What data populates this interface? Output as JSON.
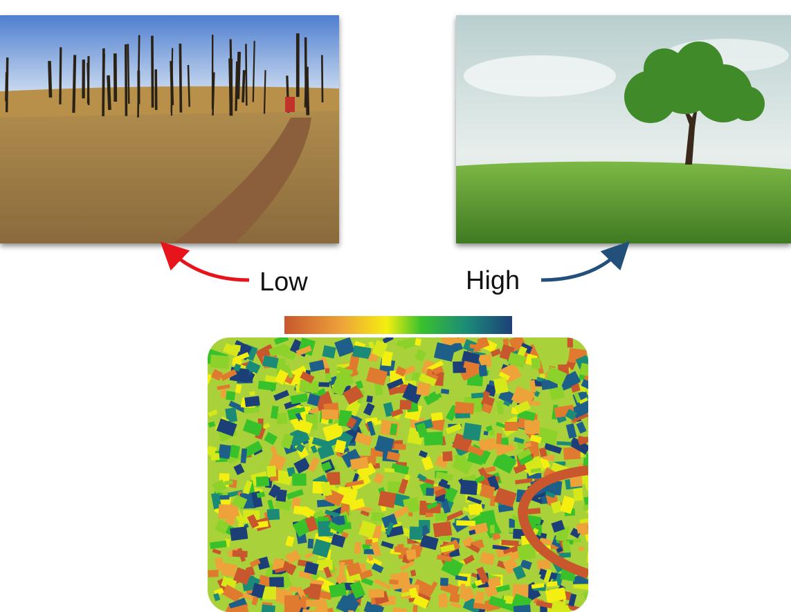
{
  "labels": {
    "low": "Low",
    "high": "High"
  }
}
